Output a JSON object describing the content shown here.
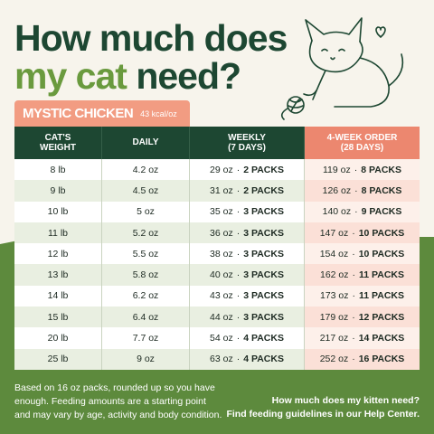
{
  "title": {
    "line1": "How much does",
    "line2_highlight": "my cat",
    "line2_rest": "need?"
  },
  "product": {
    "name": "MYSTIC CHICKEN",
    "kcal": "43 kcal/oz"
  },
  "table": {
    "headers": [
      [
        "CAT'S",
        "WEIGHT"
      ],
      [
        "DAILY"
      ],
      [
        "WEEKLY",
        "(7 DAYS)"
      ],
      [
        "4-WEEK ORDER",
        "(28 DAYS)"
      ]
    ],
    "rows": [
      [
        "8 lb",
        "4.2 oz",
        "29 oz",
        "2 PACKS",
        "119 oz",
        "8 PACKS"
      ],
      [
        "9 lb",
        "4.5 oz",
        "31 oz",
        "2 PACKS",
        "126 oz",
        "8 PACKS"
      ],
      [
        "10 lb",
        "5 oz",
        "35 oz",
        "3 PACKS",
        "140 oz",
        "9 PACKS"
      ],
      [
        "11 lb",
        "5.2 oz",
        "36 oz",
        "3 PACKS",
        "147 oz",
        "10 PACKS"
      ],
      [
        "12 lb",
        "5.5 oz",
        "38 oz",
        "3 PACKS",
        "154 oz",
        "10 PACKS"
      ],
      [
        "13 lb",
        "5.8 oz",
        "40 oz",
        "3 PACKS",
        "162 oz",
        "11 PACKS"
      ],
      [
        "14 lb",
        "6.2 oz",
        "43 oz",
        "3 PACKS",
        "173 oz",
        "11 PACKS"
      ],
      [
        "15 lb",
        "6.4 oz",
        "44 oz",
        "3 PACKS",
        "179 oz",
        "12 PACKS"
      ],
      [
        "20 lb",
        "7.7 oz",
        "54 oz",
        "4 PACKS",
        "217 oz",
        "14 PACKS"
      ],
      [
        "25 lb",
        "9 oz",
        "63 oz",
        "4 PACKS",
        "252 oz",
        "16 PACKS"
      ]
    ]
  },
  "footer": {
    "note": "Based on 16 oz packs, rounded up so you have enough. Feeding amounts are a starting point and may vary by age, activity and body condition.",
    "help": [
      "How much does my kitten need?",
      "Find feeding guidelines in our Help Center."
    ]
  }
}
